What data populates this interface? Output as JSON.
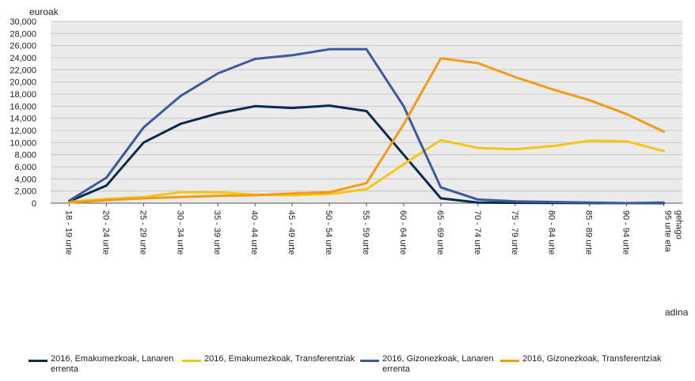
{
  "chart_data": {
    "type": "line",
    "ylabel": "euroak",
    "xlabel": "adina",
    "ylim": [
      0,
      30000
    ],
    "yticks": [
      "0",
      "2,000",
      "4,000",
      "6,000",
      "8,000",
      "10,000",
      "12,000",
      "14,000",
      "16,000",
      "18,000",
      "20,000",
      "22,000",
      "24,000",
      "26,000",
      "28,000",
      "30,000"
    ],
    "ytick_values": [
      0,
      2000,
      4000,
      6000,
      8000,
      10000,
      12000,
      14000,
      16000,
      18000,
      20000,
      22000,
      24000,
      26000,
      28000,
      30000
    ],
    "grid": true,
    "categories": [
      "18 - 19 urte",
      "20 - 24 urte",
      "25 - 29 urte",
      "30 - 34 urte",
      "35 - 39 urte",
      "40 - 44 urte",
      "45 - 49 urte",
      "50 - 54 urte",
      "55 - 59 urte",
      "60 - 64 urte",
      "65 - 69 urte",
      "70 - 74 urte",
      "75 - 79 urte",
      "80 - 84 urte",
      "85 - 89 urte",
      "90 - 94 urte",
      "95 urte eta gehago"
    ],
    "series": [
      {
        "name": "2016, Emakumezkoak, Lanaren errenta",
        "color": "#0b2a4f",
        "values": [
          300,
          2900,
          10000,
          13100,
          14800,
          16000,
          15700,
          16100,
          15200,
          8000,
          800,
          100,
          50,
          20,
          10,
          0,
          0
        ]
      },
      {
        "name": "2016, Emakumezkoak, Transferentziak",
        "color": "#f5c518",
        "values": [
          200,
          700,
          1000,
          1800,
          1800,
          1400,
          1300,
          1500,
          2300,
          6400,
          10400,
          9100,
          8900,
          9400,
          10300,
          10200,
          8600
        ]
      },
      {
        "name": "2016, Gizonezkoak, Lanaren errenta",
        "color": "#3d5aa0",
        "values": [
          400,
          4200,
          12500,
          17700,
          21400,
          23800,
          24400,
          25400,
          25400,
          16000,
          2600,
          600,
          300,
          200,
          100,
          0,
          100
        ]
      },
      {
        "name": "2016, Gizonezkoak, Transferentziak",
        "color": "#f39c12",
        "values": [
          100,
          500,
          800,
          1000,
          1200,
          1300,
          1600,
          1800,
          3300,
          13000,
          23900,
          23100,
          20800,
          18800,
          17000,
          14700,
          11800
        ]
      }
    ]
  }
}
